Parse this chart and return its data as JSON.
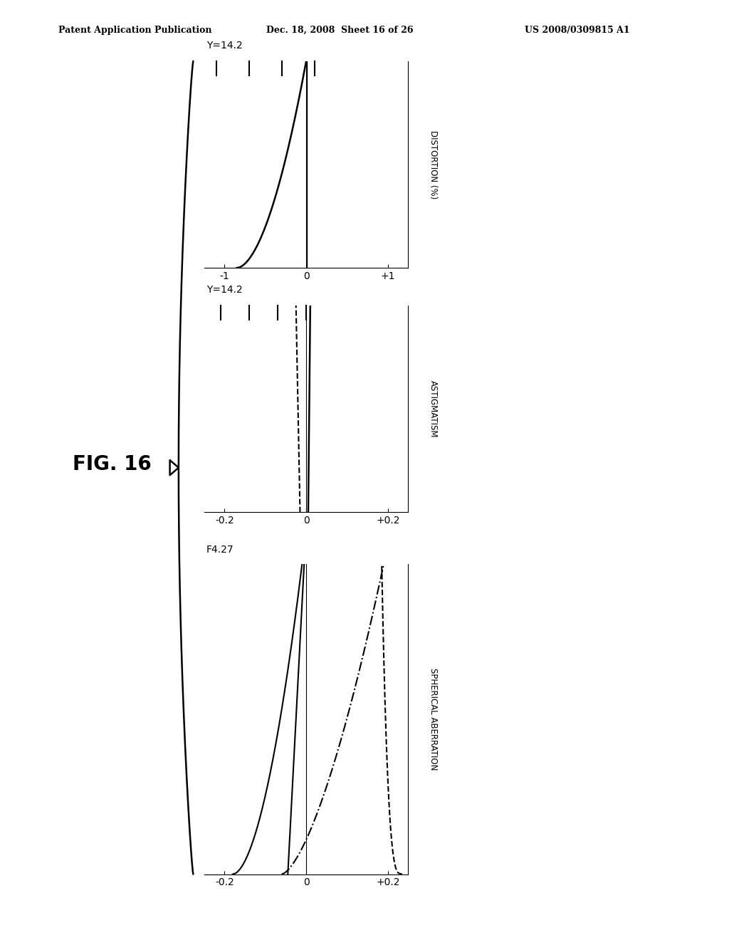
{
  "fig_label": "FIG. 16",
  "patent_header": "Patent Application Publication",
  "patent_date": "Dec. 18, 2008  Sheet 16 of 26",
  "patent_num": "US 2008/0309815 A1",
  "background_color": "#ffffff",
  "sa_title": "F4.27",
  "ast_title": "Y=14.2",
  "dist_title": "Y=14.2",
  "sa_ylabel": "SPHERICAL ABERRATION",
  "ast_ylabel": "ASTIGMATISM",
  "dist_ylabel": "DISTORTION (%)"
}
